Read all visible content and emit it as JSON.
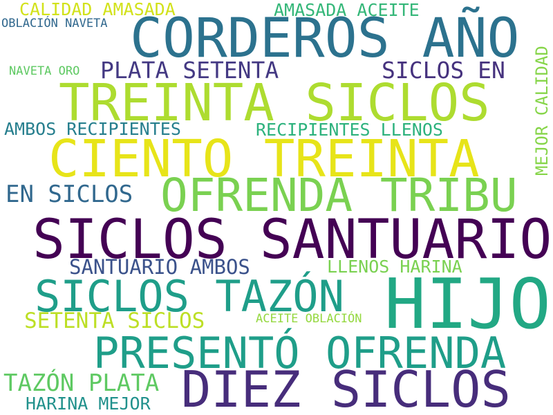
{
  "words": [
    {
      "text": "CORDEROS AÑO",
      "color": "#2c728e"
    },
    {
      "text": "TREINTA SICLOS",
      "color": "#addc30"
    },
    {
      "text": "CIENTO TREINTA",
      "color": "#e7e419"
    },
    {
      "text": "OFRENDA TRIBU",
      "color": "#7ad151"
    },
    {
      "text": "SICLOS SANTUARIO",
      "color": "#440154"
    },
    {
      "text": "HIJO",
      "color": "#22a884"
    },
    {
      "text": "SICLOS TAZÓN",
      "color": "#1f9e89"
    },
    {
      "text": "PRESENTÓ OFRENDA",
      "color": "#1f9e89"
    },
    {
      "text": "DIEZ SICLOS",
      "color": "#472d7b"
    },
    {
      "text": "CALIDAD AMASADA",
      "color": "#d2e21b"
    },
    {
      "text": "AMASADA ACEITE",
      "color": "#35b779"
    },
    {
      "text": "OBLACIÓN NAVETA",
      "color": "#31688e"
    },
    {
      "text": "NAVETA ORO",
      "color": "#5ec962"
    },
    {
      "text": "PLATA SETENTA",
      "color": "#443983"
    },
    {
      "text": "SICLOS EN",
      "color": "#46327e"
    },
    {
      "text": "MEJOR CALIDAD",
      "color": "#86d549"
    },
    {
      "text": "AMBOS RECIPIENTES",
      "color": "#277f8e"
    },
    {
      "text": "RECIPIENTES LLENOS",
      "color": "#2db27d"
    },
    {
      "text": "EN SICLOS",
      "color": "#31688e"
    },
    {
      "text": "SANTUARIO AMBOS",
      "color": "#3b528b"
    },
    {
      "text": "LLENOS HARINA",
      "color": "#7ad151"
    },
    {
      "text": "SETENTA SICLOS",
      "color": "#bddf26"
    },
    {
      "text": "ACEITE OBLACIÓN",
      "color": "#95d840"
    },
    {
      "text": "TAZÓN PLATA",
      "color": "#5ec962"
    },
    {
      "text": "HARINA MEJOR",
      "color": "#21918c"
    }
  ]
}
